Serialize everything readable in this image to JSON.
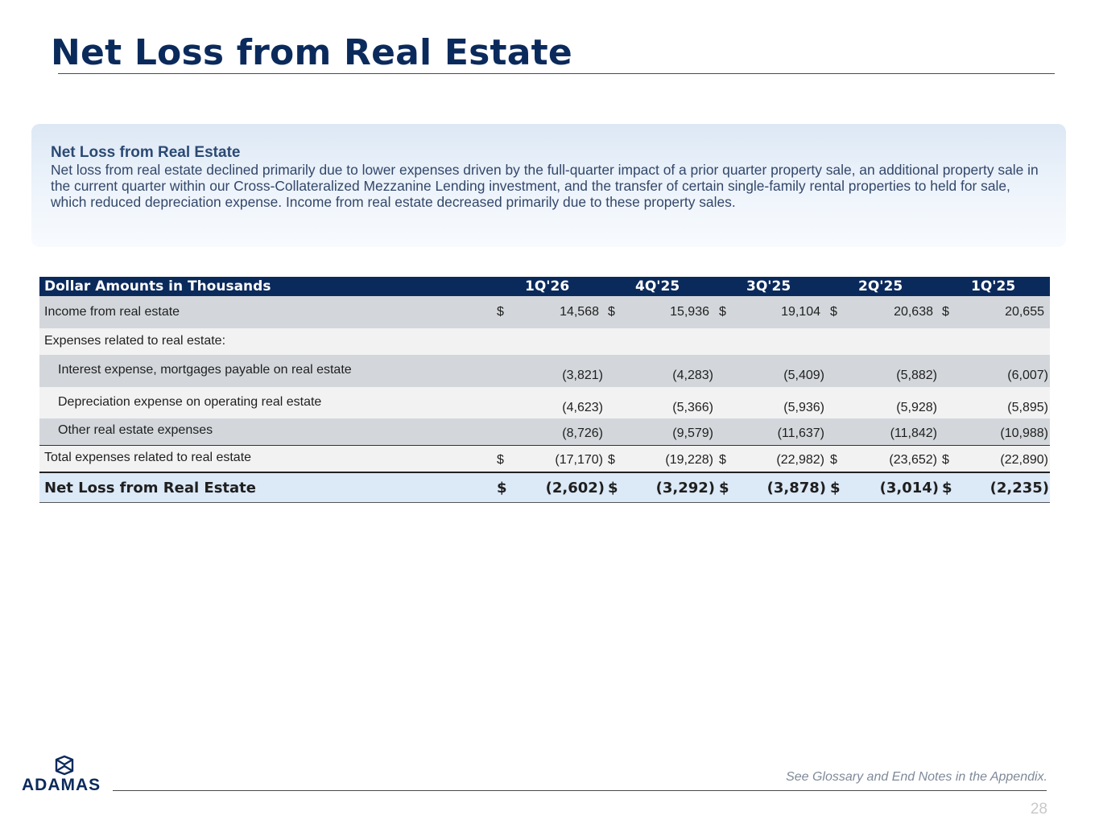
{
  "page": {
    "title": "Net Loss from Real Estate",
    "footnote": "See Glossary and End Notes in the Appendix.",
    "page_number": "28",
    "logo_text": "ADAMAS"
  },
  "callout": {
    "heading": "Net Loss from Real Estate",
    "body": "Net loss from real estate declined primarily due to lower expenses driven by the full-quarter impact of a prior quarter property sale, an additional property sale in the current quarter within our Cross-Collateralized Mezzanine Lending investment, and the transfer of certain single-family rental properties to held for sale, which reduced depreciation expense. Income from real estate decreased primarily due to these property sales."
  },
  "table": {
    "header": {
      "label": "Dollar Amounts in Thousands",
      "periods": [
        "1Q'26",
        "4Q'25",
        "3Q'25",
        "2Q'25",
        "1Q'25"
      ]
    },
    "rows": [
      {
        "label": "Income from real estate",
        "dollar": "$",
        "values": [
          "14,568",
          "15,936",
          "19,104",
          "20,638",
          "20,655"
        ]
      },
      {
        "label": "Expenses related to real estate:",
        "values": []
      },
      {
        "label": "Interest expense, mortgages payable on real estate",
        "values": [
          "(3,821)",
          "(4,283)",
          "(5,409)",
          "(5,882)",
          "(6,007)"
        ]
      },
      {
        "label": "Depreciation expense on operating real estate",
        "values": [
          "(4,623)",
          "(5,366)",
          "(5,936)",
          "(5,928)",
          "(5,895)"
        ]
      },
      {
        "label": "Other real estate expenses",
        "values": [
          "(8,726)",
          "(9,579)",
          "(11,637)",
          "(11,842)",
          "(10,988)"
        ]
      },
      {
        "label": "Total expenses related to real estate",
        "dollar": "$",
        "values": [
          "(17,170)",
          "(19,228)",
          "(22,982)",
          "(23,652)",
          "(22,890)"
        ]
      },
      {
        "label": "Net Loss from Real Estate",
        "dollar": "$",
        "values": [
          "(2,602)",
          "(3,292)",
          "(3,878)",
          "(3,014)",
          "(2,235)"
        ]
      }
    ]
  },
  "colors": {
    "navy": "#0b2a5c",
    "row_grey": "#d3d7db",
    "row_light": "#f2f2f2",
    "net_row": "#dce9f7"
  }
}
